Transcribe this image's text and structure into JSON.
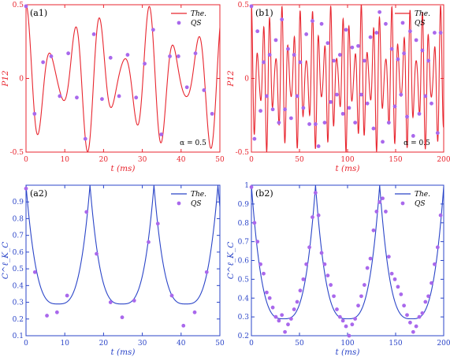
{
  "figure": {
    "chart_data": [
      {
        "panel": "(a1)",
        "type": "line",
        "xlabel": "t (ms)",
        "ylabel": "P12",
        "xlim": [
          0,
          50
        ],
        "ylim": [
          -0.5,
          0.5
        ],
        "xticks": [
          0,
          10,
          20,
          30,
          40,
          50
        ],
        "yticks": [
          -0.5,
          0,
          0.5
        ],
        "ytick_labels": [
          "-0.5",
          "0",
          "0.5"
        ],
        "annotation": "α = 0.5",
        "legend": {
          "position": "top-right",
          "entries": [
            "The.",
            "QS"
          ]
        },
        "color": "#e8262f",
        "series": [
          {
            "name": "The.",
            "kind": "line",
            "function": "cos(2*pi*t*f1)*(0.31+0.19*cos(2*pi*t*f2))",
            "f1": 0.1575,
            "f2": 0.0612
          },
          {
            "name": "QS",
            "kind": "scatter",
            "x": [
              0,
              2.2,
              4.4,
              6.5,
              8.7,
              10.9,
              13.1,
              15.3,
              17.5,
              19.6,
              21.8,
              24.0,
              26.2,
              28.4,
              30.6,
              32.8,
              34.9,
              37.1,
              39.3,
              41.5,
              43.7,
              45.9,
              48.0
            ],
            "y": [
              0.49,
              -0.24,
              0.11,
              0.15,
              -0.12,
              0.17,
              -0.13,
              -0.41,
              0.3,
              -0.14,
              0.14,
              -0.12,
              0.16,
              -0.13,
              0.1,
              0.33,
              -0.38,
              0.15,
              0.15,
              -0.06,
              0.17,
              -0.08,
              -0.24
            ]
          }
        ]
      },
      {
        "panel": "(b1)",
        "type": "line",
        "xlabel": "t (ms)",
        "ylabel": "P12",
        "xlim": [
          0,
          200
        ],
        "ylim": [
          -0.5,
          0.5
        ],
        "xticks": [
          0,
          50,
          100,
          150,
          200
        ],
        "yticks": [
          -0.5,
          0,
          0.5
        ],
        "ytick_labels": [
          "-0.5",
          "0",
          "0.5"
        ],
        "annotation": "α = 0.5",
        "legend": {
          "position": "top-right",
          "entries": [
            "The.",
            "QS"
          ]
        },
        "color": "#e8262f",
        "series": [
          {
            "name": "The.",
            "kind": "line",
            "function": "cos(2*pi*t*f1)*(0.31+0.19*cos(2*pi*t*f2))",
            "f1": 0.1575,
            "f2": 0.0612
          },
          {
            "name": "QS",
            "kind": "scatter",
            "x": [
              0,
              3.2,
              6.3,
              9.5,
              12.7,
              15.9,
              19.0,
              22.2,
              25.4,
              28.6,
              31.7,
              34.9,
              38.1,
              41.3,
              44.4,
              47.6,
              50.8,
              54.0,
              57.1,
              60.3,
              63.5,
              66.7,
              69.8,
              73.0,
              76.2,
              79.4,
              82.5,
              85.7,
              88.9,
              92.1,
              95.2,
              98.4,
              101.6,
              104.8,
              107.9,
              111.1,
              114.3,
              117.5,
              120.6,
              123.8,
              127.0,
              130.2,
              133.3,
              136.5,
              139.7,
              142.9,
              146.0,
              149.2,
              152.4,
              155.6,
              158.7,
              161.9,
              165.1,
              168.3,
              171.4,
              174.6,
              177.8,
              181.0,
              184.1,
              187.3,
              190.5,
              193.7,
              196.8
            ],
            "y": [
              0.49,
              -0.41,
              0.32,
              -0.22,
              0.11,
              -0.12,
              0.16,
              -0.21,
              0.26,
              -0.3,
              0.4,
              -0.21,
              0.2,
              -0.27,
              0.16,
              -0.12,
              0.11,
              -0.2,
              0.3,
              -0.31,
              0.39,
              -0.31,
              -0.46,
              0.37,
              -0.3,
              0.24,
              -0.16,
              0.12,
              -0.11,
              0.16,
              -0.24,
              0.33,
              -0.2,
              0.21,
              -0.3,
              0.22,
              -0.11,
              0.12,
              -0.17,
              0.28,
              -0.34,
              0.31,
              0.45,
              -0.43,
              0.37,
              -0.3,
              0.2,
              -0.19,
              0.13,
              -0.11,
              0.17,
              -0.26,
              0.32,
              -0.39,
              0.26,
              -0.24,
              0.19,
              -0.12,
              0.12,
              -0.17,
              0.31,
              -0.37,
              0.31
            ]
          }
        ]
      },
      {
        "panel": "(a2)",
        "type": "line",
        "xlabel": "t (ms)",
        "ylabel": "C^ℓ_K_C",
        "xlim": [
          0,
          50
        ],
        "ylim": [
          0.1,
          1.0
        ],
        "xticks": [
          0,
          10,
          20,
          30,
          40,
          50
        ],
        "yticks": [
          0.1,
          0.2,
          0.3,
          0.4,
          0.5,
          0.6,
          0.7,
          0.8,
          0.9
        ],
        "ytick_labels": [
          "0.1",
          "0.2",
          "0.3",
          "0.4",
          "0.5",
          "0.6",
          "0.7",
          "0.8",
          "0.9"
        ],
        "legend": {
          "position": "top-right",
          "entries": [
            "The.",
            "QS"
          ]
        },
        "color": "#2b45c8",
        "series": [
          {
            "name": "The.",
            "kind": "line",
            "function": "periodic arch: 0.29 + 0.71*((2*phase-1)^2)^1.6",
            "period": 16.5,
            "min": 0.29,
            "max": 1.0
          },
          {
            "name": "QS",
            "kind": "scatter",
            "x": [
              0,
              2.3,
              5.4,
              8.0,
              10.6,
              15.6,
              18.2,
              21.8,
              24.8,
              27.9,
              31.6,
              34.0,
              37.6,
              40.6,
              43.5,
              46.6
            ],
            "y": [
              0.98,
              0.48,
              0.22,
              0.24,
              0.34,
              0.84,
              0.59,
              0.3,
              0.21,
              0.31,
              0.66,
              0.77,
              0.34,
              0.16,
              0.24,
              0.48
            ]
          }
        ]
      },
      {
        "panel": "(b2)",
        "type": "line",
        "xlabel": "t (ms)",
        "ylabel": "C^ℓ_K_C",
        "xlim": [
          0,
          200
        ],
        "ylim": [
          0.2,
          1.0
        ],
        "xticks": [
          0,
          50,
          100,
          150,
          200
        ],
        "yticks": [
          0.2,
          0.3,
          0.4,
          0.5,
          0.6,
          0.7,
          0.8,
          0.9,
          1.0
        ],
        "ytick_labels": [
          "0.2",
          "0.3",
          "0.4",
          "0.5",
          "0.6",
          "0.7",
          "0.8",
          "0.9",
          "1"
        ],
        "legend": {
          "position": "top-right",
          "entries": [
            "The.",
            "QS"
          ]
        },
        "color": "#2b45c8",
        "series": [
          {
            "name": "The.",
            "kind": "line",
            "function": "periodic arch: 0.29 + 0.71*((2*phase-1)^2)^1.6",
            "period": 66.7,
            "min": 0.29,
            "max": 1.0
          },
          {
            "name": "QS",
            "kind": "scatter",
            "x": [
              0,
              3.2,
              6.3,
              9.5,
              12.7,
              15.9,
              19.0,
              22.2,
              25.4,
              28.6,
              31.7,
              34.9,
              38.1,
              41.3,
              44.4,
              47.6,
              50.8,
              54.0,
              57.1,
              60.3,
              63.5,
              66.7,
              69.8,
              73.0,
              76.2,
              79.4,
              82.5,
              85.7,
              88.9,
              92.1,
              95.2,
              98.4,
              101.6,
              104.8,
              107.9,
              111.1,
              114.3,
              117.5,
              120.6,
              123.8,
              127.0,
              130.2,
              133.3,
              136.5,
              139.7,
              142.9,
              146.0,
              149.2,
              152.4,
              155.6,
              158.7,
              161.9,
              165.1,
              168.3,
              171.4,
              174.6,
              177.8,
              181.0,
              184.1,
              187.3,
              190.5,
              193.7,
              196.8
            ],
            "y": [
              0.99,
              0.8,
              0.7,
              0.58,
              0.53,
              0.43,
              0.4,
              0.35,
              0.3,
              0.28,
              0.31,
              0.22,
              0.26,
              0.29,
              0.34,
              0.38,
              0.44,
              0.5,
              0.58,
              0.67,
              0.83,
              0.96,
              0.84,
              0.64,
              0.58,
              0.52,
              0.47,
              0.41,
              0.34,
              0.3,
              0.28,
              0.25,
              0.2,
              0.26,
              0.29,
              0.36,
              0.41,
              0.47,
              0.56,
              0.61,
              0.76,
              0.86,
              0.91,
              0.93,
              0.86,
              0.62,
              0.53,
              0.5,
              0.46,
              0.42,
              0.36,
              0.31,
              0.27,
              0.22,
              0.25,
              0.3,
              0.32,
              0.38,
              0.41,
              0.48,
              0.58,
              0.67,
              0.84
            ]
          }
        ]
      }
    ]
  }
}
